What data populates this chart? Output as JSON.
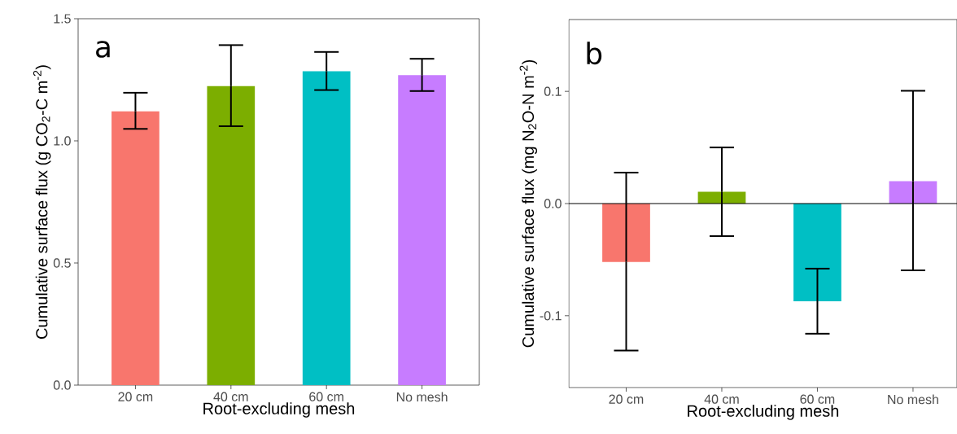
{
  "chart_data": [
    {
      "type": "bar",
      "ylabel": "Cumulative surface flux (g CO$_{2}$-C m$^{-2}$)",
      "xlabel": "Root-excluding mesh",
      "annotations": [
        "a"
      ],
      "categories": [
        "20 cm",
        "40 cm",
        "60 cm",
        "No mesh"
      ],
      "values": [
        1.121,
        1.224,
        1.285,
        1.269
      ],
      "colors": [
        "#f8766d",
        "#7cae00",
        "#00bfc4",
        "#c77cff"
      ],
      "errors": [
        [
          1.049,
          1.197
        ],
        [
          1.06,
          1.392
        ],
        [
          1.208,
          1.364
        ],
        [
          1.204,
          1.336
        ]
      ],
      "ylim": [
        0,
        1.5
      ],
      "yticks": [
        {
          "value": 0,
          "label": "0.0"
        },
        {
          "value": 0.5,
          "label": "0.5"
        },
        {
          "value": 1,
          "label": "1.0"
        },
        {
          "value": 1.5,
          "label": "1.5"
        }
      ],
      "grid": false
    },
    {
      "type": "bar",
      "ylabel": "Cumulative surface flux (mg N$_{2}$O-N m$^{-2}$)",
      "xlabel": "Root-excluding mesh",
      "annotations": [
        "b"
      ],
      "categories": [
        "20 cm",
        "40 cm",
        "60 cm",
        "No mesh"
      ],
      "values": [
        -0.052,
        0.0105,
        -0.087,
        0.02
      ],
      "colors": [
        "#f8766d",
        "#7cae00",
        "#00bfc4",
        "#c77cff"
      ],
      "errors": [
        [
          -0.131,
          0.0276
        ],
        [
          -0.029,
          0.05
        ],
        [
          -0.116,
          -0.058
        ],
        [
          -0.0595,
          0.1005
        ]
      ],
      "ylim": [
        -0.164,
        0.164
      ],
      "yticks": [
        {
          "value": -0.1,
          "label": "-0.1"
        },
        {
          "value": 0,
          "label": "0.0"
        },
        {
          "value": 0.1,
          "label": "0.1"
        }
      ],
      "ref_lines": [
        {
          "axis": "y",
          "value": 0,
          "color": "#000000"
        }
      ],
      "grid": false
    }
  ]
}
